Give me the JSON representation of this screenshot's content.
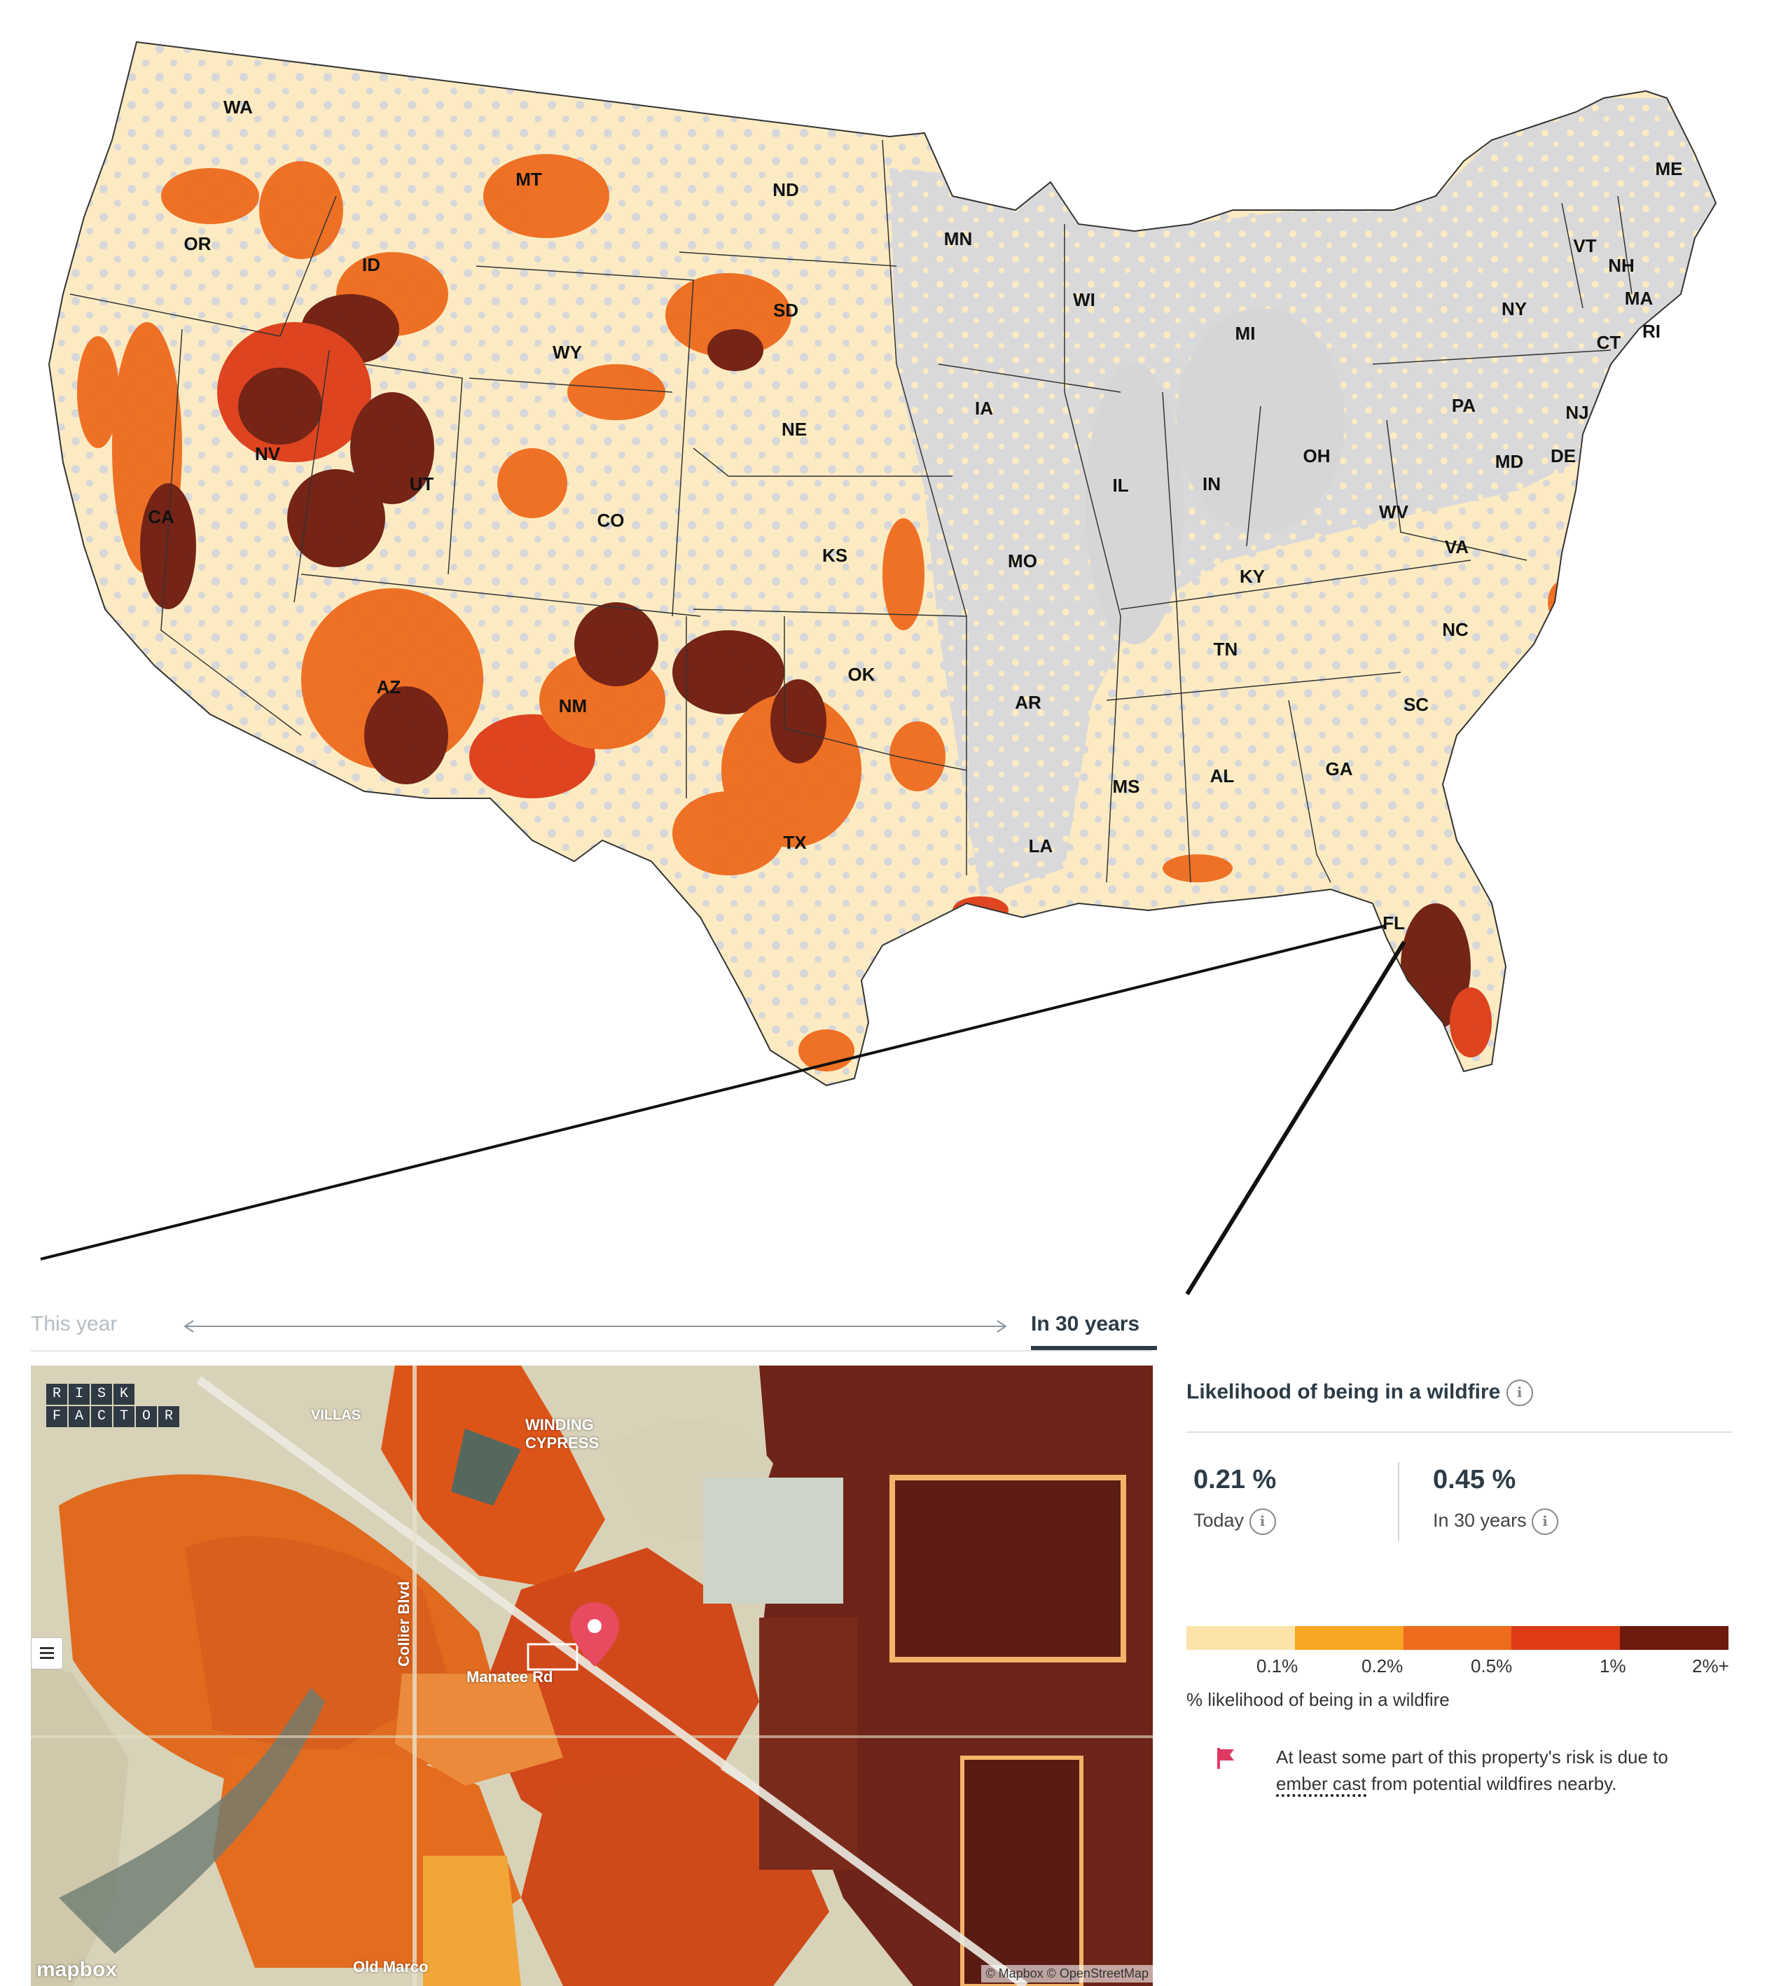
{
  "us_map": {
    "state_labels": [
      "WA",
      "OR",
      "CA",
      "NV",
      "ID",
      "MT",
      "WY",
      "UT",
      "AZ",
      "CO",
      "NM",
      "ND",
      "SD",
      "NE",
      "KS",
      "OK",
      "TX",
      "MN",
      "IA",
      "MO",
      "AR",
      "LA",
      "WI",
      "IL",
      "MI",
      "IN",
      "OH",
      "KY",
      "TN",
      "MS",
      "AL",
      "GA",
      "FL",
      "SC",
      "NC",
      "VA",
      "WV",
      "PA",
      "NY",
      "VT",
      "NH",
      "ME",
      "MA",
      "CT",
      "RI",
      "NJ",
      "DE",
      "MD"
    ]
  },
  "timeline": {
    "left_label": "This year",
    "right_label": "In 30 years"
  },
  "detail_map": {
    "logo_letters": [
      "R",
      "I",
      "S",
      "K",
      "",
      "",
      "F",
      "A",
      "C",
      "T",
      "O",
      "R"
    ],
    "labels": {
      "winding_cypress": "WINDING CYPRESS",
      "manatee": "Manatee Rd",
      "collier": "Collier Blvd",
      "old_marco": "Old Marco",
      "villas": "VILLAS"
    },
    "mapbox_logo": "mapbox",
    "attribution": "© Mapbox © OpenStreetMap"
  },
  "panel": {
    "title": "Likelihood of being in a wildfire",
    "info_glyph": "i",
    "today_value": "0.21 %",
    "today_label": "Today",
    "future_value": "0.45 %",
    "future_label": "In 30 years",
    "legend_colors": [
      "#fde3aa",
      "#f6a623",
      "#ee6a1c",
      "#dd3c17",
      "#6e1a0d"
    ],
    "legend_ticks": [
      "0.1%",
      "0.2%",
      "0.5%",
      "1%",
      "2%+"
    ],
    "legend_caption": "% likelihood of being in a wildfire",
    "ember_pre": "At least some part of this property's risk is due to ",
    "ember_link": "ember cast",
    "ember_post": " from potential wildfires nearby."
  }
}
